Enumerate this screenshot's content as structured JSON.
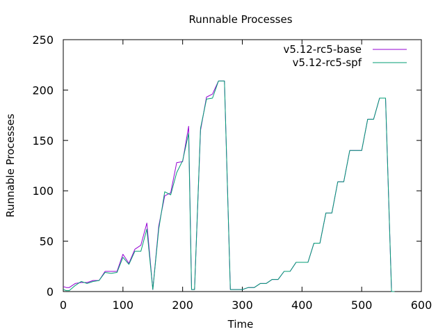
{
  "chart_data": {
    "type": "line",
    "title": "Runnable Processes",
    "xlabel": "Time",
    "ylabel": "Runnable Processes",
    "xlim": [
      0,
      600
    ],
    "ylim": [
      0,
      250
    ],
    "xticks": [
      0,
      100,
      200,
      300,
      400,
      500,
      600
    ],
    "yticks": [
      0,
      50,
      100,
      150,
      200,
      250
    ],
    "grid": false,
    "legend_position": "top-right",
    "series": [
      {
        "name": "v5.12-rc5-base",
        "color": "#9400d3",
        "x": [
          0,
          5,
          10,
          20,
          30,
          40,
          50,
          60,
          70,
          80,
          90,
          100,
          110,
          120,
          130,
          140,
          150,
          160,
          170,
          180,
          190,
          200,
          210,
          215,
          220,
          230,
          240,
          250,
          260,
          270,
          280,
          290,
          300,
          310,
          320,
          330,
          340,
          350,
          360,
          370,
          380,
          390,
          400,
          410,
          420,
          430,
          440,
          450,
          460,
          470,
          480,
          490,
          500,
          510,
          520,
          530,
          540,
          550,
          555
        ],
        "values": [
          5,
          4,
          4,
          8,
          9,
          9,
          11,
          11,
          20,
          20,
          20,
          37,
          28,
          42,
          46,
          68,
          2,
          65,
          95,
          98,
          128,
          129,
          164,
          2,
          2,
          160,
          193,
          196,
          209,
          209,
          2,
          2,
          2,
          4,
          4,
          8,
          8,
          12,
          12,
          20,
          20,
          29,
          29,
          29,
          48,
          48,
          78,
          78,
          109,
          109,
          140,
          140,
          140,
          171,
          171,
          192,
          192,
          0,
          0
        ]
      },
      {
        "name": "v5.12-rc5-spf",
        "color": "#009e73",
        "x": [
          0,
          5,
          10,
          20,
          30,
          40,
          50,
          60,
          70,
          80,
          90,
          100,
          110,
          120,
          130,
          140,
          150,
          160,
          170,
          180,
          190,
          200,
          210,
          215,
          220,
          230,
          240,
          250,
          260,
          270,
          280,
          290,
          300,
          310,
          320,
          330,
          340,
          350,
          360,
          370,
          380,
          390,
          400,
          410,
          420,
          430,
          440,
          450,
          460,
          470,
          480,
          490,
          500,
          510,
          520,
          530,
          540,
          550,
          555
        ],
        "values": [
          2,
          1,
          1,
          6,
          10,
          8,
          10,
          11,
          19,
          18,
          19,
          34,
          27,
          40,
          40,
          62,
          2,
          62,
          99,
          96,
          118,
          130,
          157,
          2,
          2,
          162,
          191,
          192,
          209,
          209,
          2,
          2,
          2,
          4,
          4,
          8,
          8,
          12,
          12,
          20,
          20,
          29,
          29,
          29,
          48,
          48,
          78,
          78,
          109,
          109,
          140,
          140,
          140,
          171,
          171,
          192,
          192,
          0,
          0
        ]
      }
    ]
  }
}
